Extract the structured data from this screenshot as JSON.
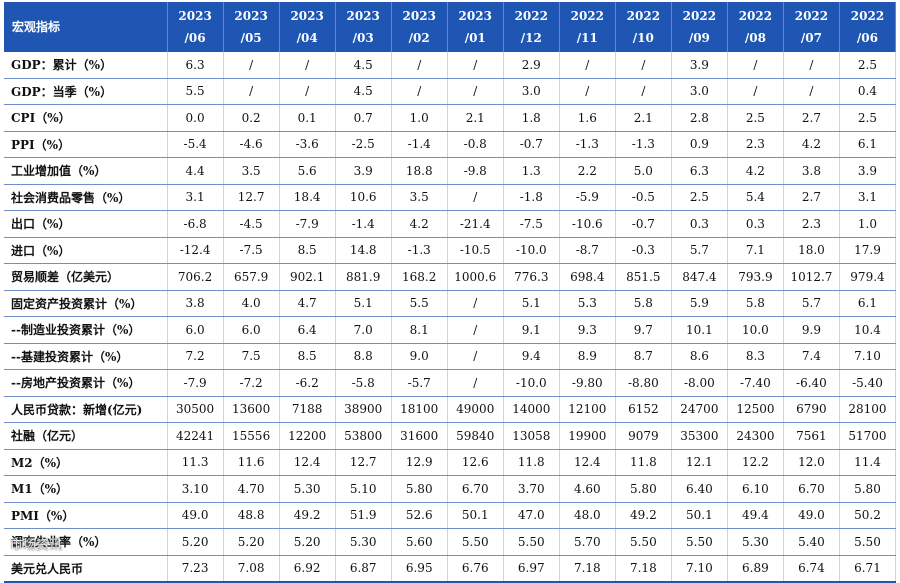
{
  "table": {
    "header_label": "宏观指标",
    "columns": [
      {
        "year": "2023",
        "month": "/06"
      },
      {
        "year": "2023",
        "month": "/05"
      },
      {
        "year": "2023",
        "month": "/04"
      },
      {
        "year": "2023",
        "month": "/03"
      },
      {
        "year": "2023",
        "month": "/02"
      },
      {
        "year": "2023",
        "month": "/01"
      },
      {
        "year": "2022",
        "month": "/12"
      },
      {
        "year": "2022",
        "month": "/11"
      },
      {
        "year": "2022",
        "month": "/10"
      },
      {
        "year": "2022",
        "month": "/09"
      },
      {
        "year": "2022",
        "month": "/08"
      },
      {
        "year": "2022",
        "month": "/07"
      },
      {
        "year": "2022",
        "month": "/06"
      }
    ],
    "rows": [
      {
        "label": "GDP：累计（%）",
        "values": [
          "6.3",
          "/",
          "/",
          "4.5",
          "/",
          "/",
          "2.9",
          "/",
          "/",
          "3.9",
          "/",
          "/",
          "2.5"
        ]
      },
      {
        "label": "GDP：当季（%）",
        "values": [
          "5.5",
          "/",
          "/",
          "4.5",
          "/",
          "/",
          "3.0",
          "/",
          "/",
          "3.0",
          "/",
          "/",
          "0.4"
        ]
      },
      {
        "label": "CPI（%）",
        "values": [
          "0.0",
          "0.2",
          "0.1",
          "0.7",
          "1.0",
          "2.1",
          "1.8",
          "1.6",
          "2.1",
          "2.8",
          "2.5",
          "2.7",
          "2.5"
        ]
      },
      {
        "label": "PPI（%）",
        "values": [
          "-5.4",
          "-4.6",
          "-3.6",
          "-2.5",
          "-1.4",
          "-0.8",
          "-0.7",
          "-1.3",
          "-1.3",
          "0.9",
          "2.3",
          "4.2",
          "6.1"
        ]
      },
      {
        "label": "工业增加值（%）",
        "values": [
          "4.4",
          "3.5",
          "5.6",
          "3.9",
          "18.8",
          "-9.8",
          "1.3",
          "2.2",
          "5.0",
          "6.3",
          "4.2",
          "3.8",
          "3.9"
        ]
      },
      {
        "label": "社会消费品零售（%）",
        "values": [
          "3.1",
          "12.7",
          "18.4",
          "10.6",
          "3.5",
          "/",
          "-1.8",
          "-5.9",
          "-0.5",
          "2.5",
          "5.4",
          "2.7",
          "3.1"
        ]
      },
      {
        "label": "出口（%）",
        "values": [
          "-6.8",
          "-4.5",
          "-7.9",
          "-1.4",
          "4.2",
          "-21.4",
          "-7.5",
          "-10.6",
          "-0.7",
          "0.3",
          "0.3",
          "2.3",
          "1.0"
        ]
      },
      {
        "label": "进口（%）",
        "values": [
          "-12.4",
          "-7.5",
          "8.5",
          "14.8",
          "-1.3",
          "-10.5",
          "-10.0",
          "-8.7",
          "-0.3",
          "5.7",
          "7.1",
          "18.0",
          "17.9"
        ]
      },
      {
        "label": "贸易顺差（亿美元）",
        "values": [
          "706.2",
          "657.9",
          "902.1",
          "881.9",
          "168.2",
          "1000.6",
          "776.3",
          "698.4",
          "851.5",
          "847.4",
          "793.9",
          "1012.7",
          "979.4"
        ]
      },
      {
        "label": "固定资产投资累计（%）",
        "values": [
          "3.8",
          "4.0",
          "4.7",
          "5.1",
          "5.5",
          "/",
          "5.1",
          "5.3",
          "5.8",
          "5.9",
          "5.8",
          "5.7",
          "6.1"
        ]
      },
      {
        "label": "--制造业投资累计（%）",
        "values": [
          "6.0",
          "6.0",
          "6.4",
          "7.0",
          "8.1",
          "/",
          "9.1",
          "9.3",
          "9.7",
          "10.1",
          "10.0",
          "9.9",
          "10.4"
        ]
      },
      {
        "label": "--基建投资累计（%）",
        "values": [
          "7.2",
          "7.5",
          "8.5",
          "8.8",
          "9.0",
          "/",
          "9.4",
          "8.9",
          "8.7",
          "8.6",
          "8.3",
          "7.4",
          "7.10"
        ]
      },
      {
        "label": "--房地产投资累计（%）",
        "values": [
          "-7.9",
          "-7.2",
          "-6.2",
          "-5.8",
          "-5.7",
          "/",
          "-10.0",
          "-9.80",
          "-8.80",
          "-8.00",
          "-7.40",
          "-6.40",
          "-5.40"
        ]
      },
      {
        "label": "人民币贷款：新增(亿元)",
        "values": [
          "30500",
          "13600",
          "7188",
          "38900",
          "18100",
          "49000",
          "14000",
          "12100",
          "6152",
          "24700",
          "12500",
          "6790",
          "28100"
        ]
      },
      {
        "label": "社融（亿元）",
        "values": [
          "42241",
          "15556",
          "12200",
          "53800",
          "31600",
          "59840",
          "13058",
          "19900",
          "9079",
          "35300",
          "24300",
          "7561",
          "51700"
        ]
      },
      {
        "label": "M2（%）",
        "values": [
          "11.3",
          "11.6",
          "12.4",
          "12.7",
          "12.9",
          "12.6",
          "11.8",
          "12.4",
          "11.8",
          "12.1",
          "12.2",
          "12.0",
          "11.4"
        ]
      },
      {
        "label": "M1（%）",
        "values": [
          "3.10",
          "4.70",
          "5.30",
          "5.10",
          "5.80",
          "6.70",
          "3.70",
          "4.60",
          "5.80",
          "6.40",
          "6.10",
          "6.70",
          "5.80"
        ]
      },
      {
        "label": "PMI（%）",
        "values": [
          "49.0",
          "48.8",
          "49.2",
          "51.9",
          "52.6",
          "50.1",
          "47.0",
          "48.0",
          "49.2",
          "50.1",
          "49.4",
          "49.0",
          "50.2"
        ]
      },
      {
        "label": "调查失业率（%）",
        "values": [
          "5.20",
          "5.20",
          "5.20",
          "5.30",
          "5.60",
          "5.50",
          "5.50",
          "5.70",
          "5.50",
          "5.50",
          "5.30",
          "5.40",
          "5.50"
        ]
      },
      {
        "label": "美元兑人民币",
        "values": [
          "7.23",
          "7.08",
          "6.92",
          "6.87",
          "6.95",
          "6.76",
          "6.97",
          "7.18",
          "7.18",
          "7.10",
          "6.89",
          "6.74",
          "6.71"
        ]
      }
    ]
  },
  "watermark": "市场资讯"
}
